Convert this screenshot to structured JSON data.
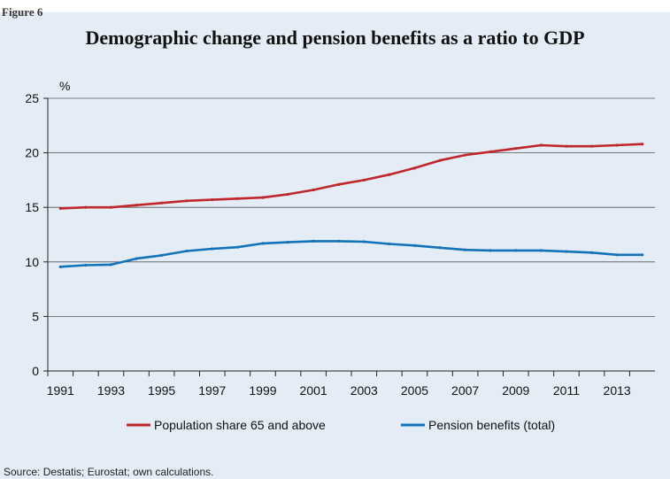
{
  "figure_label": "Figure 6",
  "source": "Source: Destatis; Eurostat; own calculations.",
  "colors": {
    "background": "#e4edf6",
    "population": "#c0272d",
    "pension": "#1273b8"
  },
  "chart_data": {
    "type": "line",
    "title": "Demographic change and pension benefits as a ratio to GDP",
    "ylabel": "%",
    "xlabel": "",
    "ylim": [
      0,
      25
    ],
    "yticks": [
      0,
      5,
      10,
      15,
      20,
      25
    ],
    "xticks": [
      "1991",
      "1993",
      "1995",
      "1997",
      "1999",
      "2001",
      "2003",
      "2005",
      "2007",
      "2009",
      "2011",
      "2013"
    ],
    "x": [
      1991,
      1992,
      1993,
      1994,
      1995,
      1996,
      1997,
      1998,
      1999,
      2000,
      2001,
      2002,
      2003,
      2004,
      2005,
      2006,
      2007,
      2008,
      2009,
      2010,
      2011,
      2012,
      2013,
      2014
    ],
    "grid": true,
    "legend_position": "bottom",
    "series": [
      {
        "name": "Population share 65 and above",
        "color": "#c0272d",
        "values": [
          14.9,
          15.0,
          15.0,
          15.2,
          15.4,
          15.6,
          15.7,
          15.8,
          15.9,
          16.2,
          16.6,
          17.1,
          17.5,
          18.0,
          18.6,
          19.3,
          19.8,
          20.1,
          20.4,
          20.7,
          20.6,
          20.6,
          20.7,
          20.8
        ]
      },
      {
        "name": "Pension benefits (total)",
        "color": "#1273b8",
        "values": [
          9.55,
          9.7,
          9.75,
          10.3,
          10.6,
          11.0,
          11.2,
          11.35,
          11.7,
          11.8,
          11.9,
          11.9,
          11.85,
          11.65,
          11.5,
          11.3,
          11.1,
          11.05,
          11.05,
          11.05,
          10.95,
          10.85,
          10.65,
          10.65
        ]
      }
    ]
  }
}
